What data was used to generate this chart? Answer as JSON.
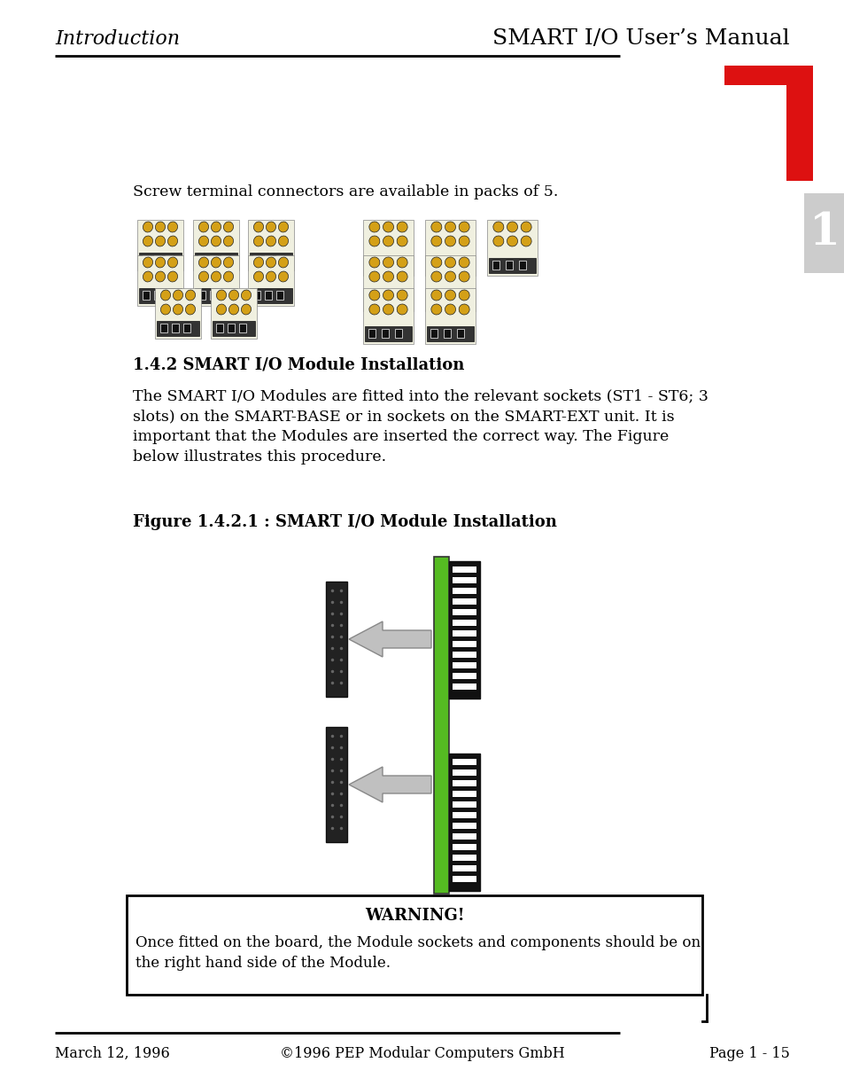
{
  "header_left": "Introduction",
  "header_right": "SMART I/O User’s Manual",
  "footer_left": "March 12, 1996",
  "footer_center": "©1996 PEP Modular Computers GmbH",
  "footer_right": "Page 1 - 15",
  "screw_text": "Screw terminal connectors are available in packs of 5.",
  "section_title": "1.4.2 SMART I/O Module Installation",
  "body_text_lines": [
    "The SMART I/O Modules are fitted into the relevant sockets (ST1 - ST6; 3",
    "slots) on the SMART-BASE or in sockets on the SMART-EXT unit. It is",
    "important that the Modules are inserted the correct way. The Figure",
    "below illustrates this procedure."
  ],
  "figure_caption": "Figure 1.4.2.1 : SMART I/O Module Installation",
  "warning_title": "WARNING!",
  "warning_line1": "Once fitted on the board, the Module sockets and components should be on",
  "warning_line2": "the right hand side of the Module.",
  "bg_color": "#ffffff",
  "text_color": "#000000",
  "red_color": "#dd1111",
  "green_color": "#55bb22",
  "gray_tab": "#cccccc",
  "gray_arrow_fill": "#c0c0c0",
  "gray_arrow_edge": "#888888"
}
